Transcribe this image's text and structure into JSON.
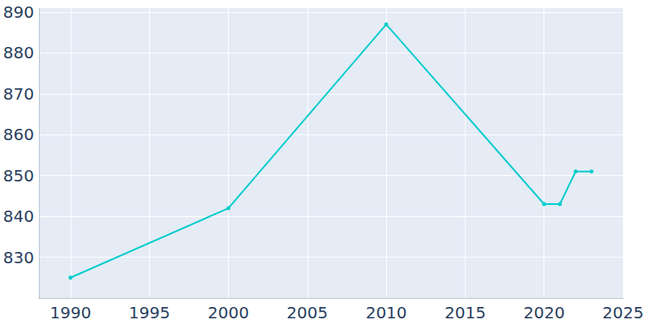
{
  "chart_data": {
    "type": "line",
    "x": [
      1990,
      2000,
      2010,
      2020,
      2021,
      2022,
      2023
    ],
    "values": [
      825,
      842,
      887,
      843,
      843,
      851,
      851
    ],
    "color": "#00cccc",
    "marker": "circle",
    "xlim": [
      1988,
      2025
    ],
    "xticks": [
      1990,
      1995,
      2000,
      2005,
      2010,
      2015,
      2020,
      2025
    ],
    "ylim": [
      820,
      891
    ],
    "yticks": [
      830,
      840,
      850,
      860,
      870,
      880,
      890
    ],
    "grid": true
  }
}
